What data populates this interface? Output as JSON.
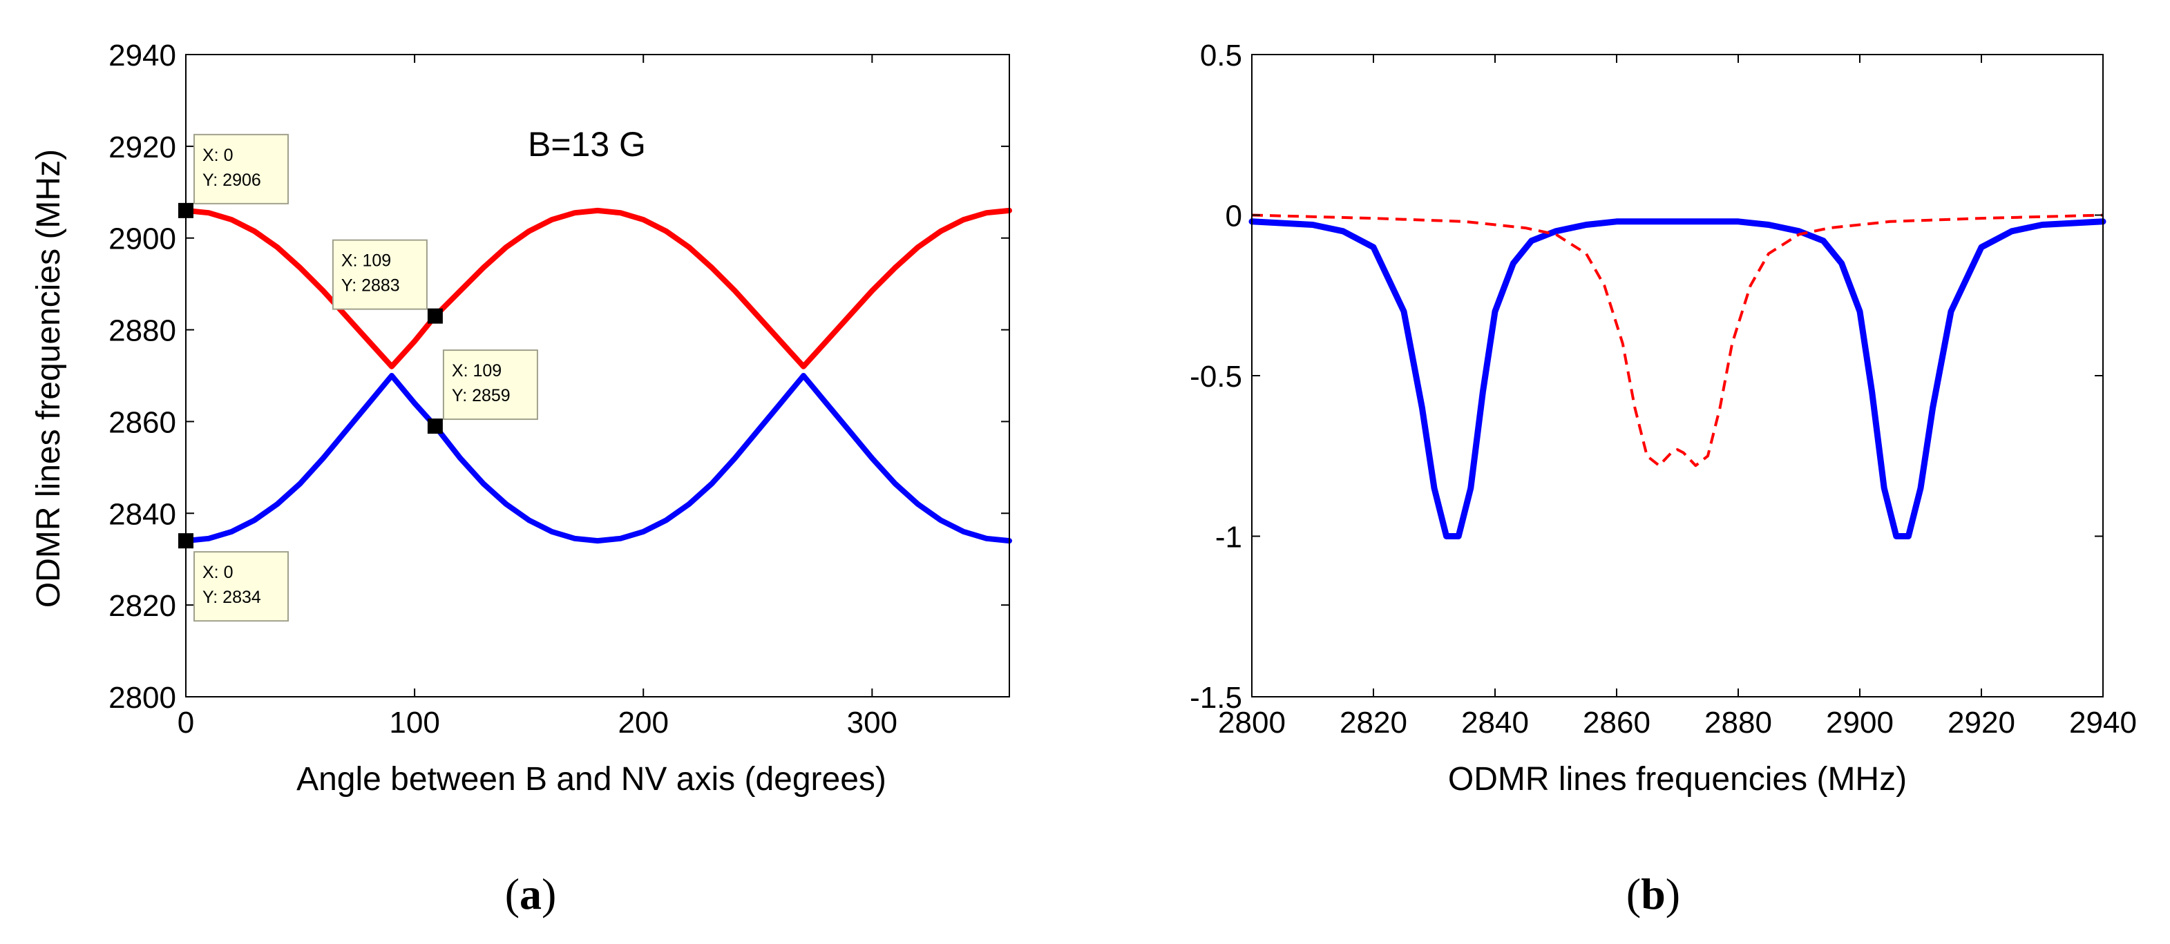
{
  "chart_data": [
    {
      "id": "a",
      "type": "line",
      "title": "",
      "xlabel": "Angle between B and NV axis (degrees)",
      "ylabel": "ODMR lines frequencies (MHz)",
      "xlim": [
        0,
        360
      ],
      "ylim": [
        2800,
        2940
      ],
      "xticks": [
        0,
        100,
        200,
        300
      ],
      "yticks": [
        2800,
        2820,
        2840,
        2860,
        2880,
        2900,
        2920,
        2940
      ],
      "annotation": "B=13 G",
      "caption_letter": "a",
      "series": [
        {
          "name": "upper line",
          "color": "#ff0000",
          "x": [
            0,
            10,
            20,
            30,
            40,
            50,
            60,
            70,
            80,
            90,
            100,
            109,
            120,
            130,
            140,
            150,
            160,
            170,
            180,
            190,
            200,
            210,
            220,
            230,
            240,
            250,
            260,
            270,
            280,
            290,
            300,
            310,
            320,
            330,
            340,
            350,
            360
          ],
          "values": [
            2906,
            2905.5,
            2904,
            2901.5,
            2898,
            2893.5,
            2888.5,
            2883,
            2877.5,
            2872,
            2877.5,
            2883,
            2888.5,
            2893.5,
            2898,
            2901.5,
            2904,
            2905.5,
            2906,
            2905.5,
            2904,
            2901.5,
            2898,
            2893.5,
            2888.5,
            2883,
            2877.5,
            2872,
            2877.5,
            2883,
            2888.5,
            2893.5,
            2898,
            2901.5,
            2904,
            2905.5,
            2906
          ]
        },
        {
          "name": "lower line",
          "color": "#0000ff",
          "x": [
            0,
            10,
            20,
            30,
            40,
            50,
            60,
            70,
            80,
            90,
            100,
            109,
            120,
            130,
            140,
            150,
            160,
            170,
            180,
            190,
            200,
            210,
            220,
            230,
            240,
            250,
            260,
            270,
            280,
            290,
            300,
            310,
            320,
            330,
            340,
            350,
            360
          ],
          "values": [
            2834,
            2834.5,
            2836,
            2838.5,
            2842,
            2846.5,
            2852,
            2858,
            2864,
            2870,
            2864,
            2859,
            2852,
            2846.5,
            2842,
            2838.5,
            2836,
            2834.5,
            2834,
            2834.5,
            2836,
            2838.5,
            2842,
            2846.5,
            2852,
            2858,
            2864,
            2870,
            2864,
            2858,
            2852,
            2846.5,
            2842,
            2838.5,
            2836,
            2834.5,
            2834
          ]
        }
      ],
      "datatips": [
        {
          "x": 0,
          "y": 2906,
          "x_text": "X: 0",
          "y_text": "Y: 2906",
          "placement": "upper-right"
        },
        {
          "x": 109,
          "y": 2883,
          "x_text": "X: 109",
          "y_text": "Y: 2883",
          "placement": "upper-left"
        },
        {
          "x": 109,
          "y": 2859,
          "x_text": "X: 109",
          "y_text": "Y: 2859",
          "placement": "upper-right"
        },
        {
          "x": 0,
          "y": 2834,
          "x_text": "X: 0",
          "y_text": "Y: 2834",
          "placement": "lower-right"
        }
      ]
    },
    {
      "id": "b",
      "type": "line",
      "title": "",
      "xlabel": "ODMR lines frequencies (MHz)",
      "ylabel": "",
      "xlim": [
        2800,
        2940
      ],
      "ylim": [
        -1.5,
        0.5
      ],
      "xticks": [
        2800,
        2820,
        2840,
        2860,
        2880,
        2900,
        2920,
        2940
      ],
      "yticks": [
        0.5,
        0,
        -0.5,
        -1,
        -1.5
      ],
      "caption_letter": "b",
      "series": [
        {
          "name": "solid blue spectrum",
          "color": "#0000ff",
          "style": "solid",
          "x": [
            2800,
            2810,
            2815,
            2820,
            2825,
            2828,
            2830,
            2832,
            2834,
            2836,
            2838,
            2840,
            2843,
            2846,
            2850,
            2855,
            2860,
            2870,
            2880,
            2885,
            2890,
            2894,
            2897,
            2900,
            2902,
            2904,
            2906,
            2908,
            2910,
            2912,
            2915,
            2920,
            2925,
            2930,
            2940
          ],
          "values": [
            -0.02,
            -0.03,
            -0.05,
            -0.1,
            -0.3,
            -0.6,
            -0.85,
            -1.0,
            -1.0,
            -0.85,
            -0.55,
            -0.3,
            -0.15,
            -0.08,
            -0.05,
            -0.03,
            -0.02,
            -0.02,
            -0.02,
            -0.03,
            -0.05,
            -0.08,
            -0.15,
            -0.3,
            -0.55,
            -0.85,
            -1.0,
            -1.0,
            -0.85,
            -0.6,
            -0.3,
            -0.1,
            -0.05,
            -0.03,
            -0.02
          ]
        },
        {
          "name": "dashed red spectrum",
          "color": "#ff0000",
          "style": "dashed",
          "x": [
            2800,
            2820,
            2835,
            2845,
            2850,
            2855,
            2858,
            2861,
            2863,
            2865,
            2867,
            2869,
            2870,
            2871,
            2873,
            2875,
            2877,
            2879,
            2882,
            2885,
            2890,
            2895,
            2905,
            2920,
            2940
          ],
          "values": [
            0,
            -0.01,
            -0.02,
            -0.04,
            -0.06,
            -0.12,
            -0.22,
            -0.4,
            -0.6,
            -0.75,
            -0.78,
            -0.74,
            -0.73,
            -0.74,
            -0.78,
            -0.75,
            -0.6,
            -0.4,
            -0.22,
            -0.12,
            -0.06,
            -0.04,
            -0.02,
            -0.01,
            0
          ]
        }
      ]
    }
  ]
}
